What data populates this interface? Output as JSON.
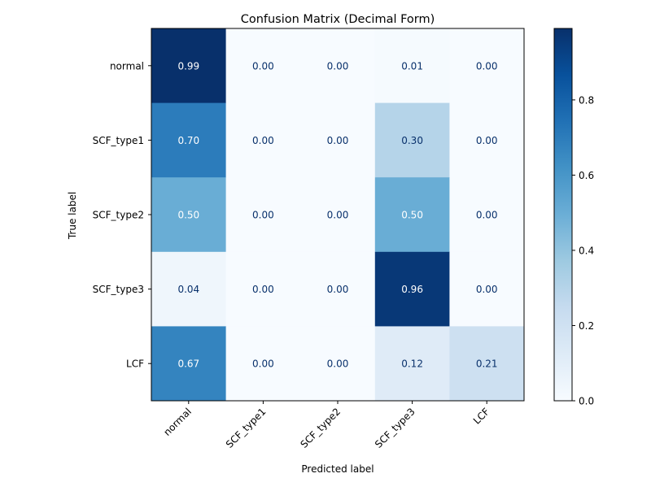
{
  "chart_data": {
    "type": "heatmap",
    "title": "Confusion Matrix (Decimal Form)",
    "xlabel": "Predicted label",
    "ylabel": "True label",
    "x_categories": [
      "normal",
      "SCF_type1",
      "SCF_type2",
      "SCF_type3",
      "LCF"
    ],
    "y_categories": [
      "normal",
      "SCF_type1",
      "SCF_type2",
      "SCF_type3",
      "LCF"
    ],
    "values": [
      [
        0.99,
        0.0,
        0.0,
        0.01,
        0.0
      ],
      [
        0.7,
        0.0,
        0.0,
        0.3,
        0.0
      ],
      [
        0.5,
        0.0,
        0.0,
        0.5,
        0.0
      ],
      [
        0.04,
        0.0,
        0.0,
        0.96,
        0.0
      ],
      [
        0.67,
        0.0,
        0.0,
        0.12,
        0.21
      ]
    ],
    "colormap": "Blues",
    "colorbar": {
      "range": [
        0.0,
        0.99
      ],
      "ticks": [
        0.0,
        0.2,
        0.4,
        0.6,
        0.8
      ],
      "tick_labels": [
        "0.0",
        "0.2",
        "0.4",
        "0.6",
        "0.8"
      ]
    },
    "text_colors": {
      "dark": "#08306b",
      "light": "#ffffff"
    }
  }
}
